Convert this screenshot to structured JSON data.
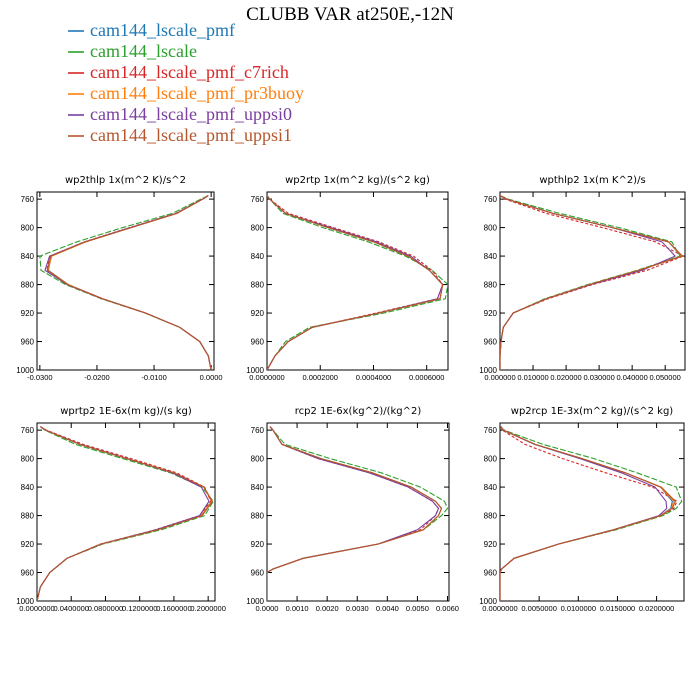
{
  "figure": {
    "title": "CLUBB VAR at250E,-12N",
    "legend": [
      {
        "label": "cam144_lscale_pmf",
        "color": "#1f77b4"
      },
      {
        "label": "cam144_lscale",
        "color": "#2ca02c"
      },
      {
        "label": "cam144_lscale_pmf_c7rich",
        "color": "#d62728"
      },
      {
        "label": "cam144_lscale_pmf_pr3buoy",
        "color": "#ff7f0e"
      },
      {
        "label": "cam144_lscale_pmf_uppsi0",
        "color": "#7b3fa0"
      },
      {
        "label": "cam144_lscale_pmf_uppsi1",
        "color": "#b5572e"
      }
    ]
  },
  "chart_data": [
    {
      "type": "line",
      "title": "wp2thlp  1x(m^2 K)/s^2",
      "xlim": [
        -0.0305,
        0.0005
      ],
      "xticks": [
        -0.03,
        -0.02,
        -0.01,
        0.0
      ],
      "xticklabels": [
        "-0.0300",
        "-0.0200",
        "-0.0100",
        "0.0000"
      ],
      "ylim": [
        1000,
        750
      ],
      "yticks": [
        760,
        800,
        840,
        880,
        920,
        960,
        1000
      ],
      "y": [
        755,
        760,
        780,
        800,
        820,
        840,
        860,
        880,
        900,
        920,
        940,
        960,
        980,
        1000
      ],
      "series": [
        {
          "name": "cam144_lscale_pmf",
          "x": [
            -0.0005,
            -0.0015,
            -0.006,
            -0.014,
            -0.022,
            -0.028,
            -0.0285,
            -0.025,
            -0.019,
            -0.0115,
            -0.0055,
            -0.002,
            -0.0005,
            0.0
          ]
        },
        {
          "name": "cam144_lscale",
          "x": [
            -0.0005,
            -0.0018,
            -0.0068,
            -0.0155,
            -0.0235,
            -0.03,
            -0.0298,
            -0.0255,
            -0.0192,
            -0.0116,
            -0.0055,
            -0.002,
            -0.0005,
            0.0
          ]
        },
        {
          "name": "cam144_lscale_pmf_c7rich",
          "x": [
            -0.0005,
            -0.0015,
            -0.0062,
            -0.0143,
            -0.0222,
            -0.0282,
            -0.0288,
            -0.0252,
            -0.0191,
            -0.0115,
            -0.0055,
            -0.002,
            -0.0005,
            0.0
          ]
        },
        {
          "name": "cam144_lscale_pmf_pr3buoy",
          "x": [
            -0.0005,
            -0.0015,
            -0.006,
            -0.014,
            -0.0219,
            -0.0279,
            -0.0286,
            -0.025,
            -0.019,
            -0.0115,
            -0.0055,
            -0.002,
            -0.0005,
            0.0
          ]
        },
        {
          "name": "cam144_lscale_pmf_uppsi0",
          "x": [
            -0.0005,
            -0.0015,
            -0.0061,
            -0.0142,
            -0.0221,
            -0.0283,
            -0.0291,
            -0.0252,
            -0.019,
            -0.0115,
            -0.0055,
            -0.002,
            -0.0005,
            0.0
          ]
        },
        {
          "name": "cam144_lscale_pmf_uppsi1",
          "x": [
            -0.0005,
            -0.0015,
            -0.006,
            -0.014,
            -0.022,
            -0.0281,
            -0.0287,
            -0.0251,
            -0.019,
            -0.0115,
            -0.0055,
            -0.002,
            -0.0005,
            0.0
          ]
        }
      ]
    },
    {
      "type": "line",
      "title": "wp2rtp  1x(m^2 kg)/(s^2 kg)",
      "xlim": [
        0,
        0.00068
      ],
      "xticks": [
        0,
        0.0002,
        0.0004,
        0.0006
      ],
      "xticklabels": [
        "0.0000000",
        "0.0002000",
        "0.0004000",
        "0.0006000"
      ],
      "ylim": [
        1000,
        750
      ],
      "yticks": [
        760,
        800,
        840,
        880,
        920,
        960,
        1000
      ],
      "y": [
        755,
        760,
        780,
        800,
        820,
        840,
        860,
        880,
        900,
        920,
        940,
        960,
        980,
        1000
      ],
      "series": [
        {
          "name": "cam144_lscale_pmf",
          "x": [
            0.0,
            1e-05,
            7e-05,
            0.00023,
            0.0004,
            0.00053,
            0.00061,
            0.00066,
            0.00065,
            0.00042,
            0.00017,
            8e-05,
            3e-05,
            0.0
          ]
        },
        {
          "name": "cam144_lscale",
          "x": [
            0.0,
            1e-05,
            6e-05,
            0.00021,
            0.00038,
            0.00052,
            0.00062,
            0.00068,
            0.00067,
            0.00044,
            0.00016,
            7e-05,
            3e-05,
            0.0
          ]
        },
        {
          "name": "cam144_lscale_pmf_c7rich",
          "x": [
            0.0,
            1e-05,
            8e-05,
            0.00025,
            0.00042,
            0.00055,
            0.00062,
            0.00066,
            0.00064,
            0.00041,
            0.00017,
            8e-05,
            3e-05,
            0.0
          ]
        },
        {
          "name": "cam144_lscale_pmf_pr3buoy",
          "x": [
            0.0,
            1e-05,
            7e-05,
            0.00023,
            0.0004,
            0.00053,
            0.00061,
            0.00066,
            0.00065,
            0.00042,
            0.00017,
            8e-05,
            3e-05,
            0.0
          ]
        },
        {
          "name": "cam144_lscale_pmf_uppsi0",
          "x": [
            0.0,
            1e-05,
            7e-05,
            0.00024,
            0.00041,
            0.00054,
            0.00061,
            0.00066,
            0.00064,
            0.00042,
            0.00017,
            8e-05,
            3e-05,
            0.0
          ]
        },
        {
          "name": "cam144_lscale_pmf_uppsi1",
          "x": [
            0.0,
            1e-05,
            7e-05,
            0.00023,
            0.0004,
            0.00053,
            0.00061,
            0.00066,
            0.00065,
            0.00042,
            0.00017,
            8e-05,
            3e-05,
            0.0
          ]
        }
      ]
    },
    {
      "type": "line",
      "title": "wpthlp2  1x(m K^2)/s",
      "xlim": [
        0,
        0.056
      ],
      "xticks": [
        0,
        0.01,
        0.02,
        0.03,
        0.04,
        0.05
      ],
      "xticklabels": [
        "0.000000",
        "0.010000",
        "0.020000",
        "0.030000",
        "0.040000",
        "0.050000"
      ],
      "ylim": [
        1000,
        750
      ],
      "yticks": [
        760,
        800,
        840,
        880,
        920,
        960,
        1000
      ],
      "y": [
        755,
        760,
        780,
        800,
        820,
        840,
        860,
        880,
        900,
        920,
        940,
        960,
        980,
        1000
      ],
      "series": [
        {
          "name": "cam144_lscale_pmf",
          "x": [
            0.0,
            0.002,
            0.016,
            0.034,
            0.051,
            0.0548,
            0.042,
            0.027,
            0.014,
            0.004,
            0.001,
            0.0003,
            0.0,
            0.0
          ]
        },
        {
          "name": "cam144_lscale",
          "x": [
            0.0,
            0.0025,
            0.018,
            0.036,
            0.052,
            0.0545,
            0.0415,
            0.0265,
            0.0135,
            0.004,
            0.001,
            0.0003,
            0.0,
            0.0
          ]
        },
        {
          "name": "cam144_lscale_pmf_c7rich",
          "x": [
            0.0,
            0.0015,
            0.014,
            0.031,
            0.047,
            0.0555,
            0.0445,
            0.028,
            0.0145,
            0.004,
            0.001,
            0.0003,
            0.0,
            0.0
          ]
        },
        {
          "name": "cam144_lscale_pmf_pr3buoy",
          "x": [
            0.0,
            0.002,
            0.016,
            0.034,
            0.051,
            0.055,
            0.042,
            0.027,
            0.014,
            0.004,
            0.001,
            0.0003,
            0.0,
            0.0
          ]
        },
        {
          "name": "cam144_lscale_pmf_uppsi0",
          "x": [
            0.0,
            0.002,
            0.016,
            0.034,
            0.049,
            0.053,
            0.043,
            0.0275,
            0.014,
            0.004,
            0.001,
            0.0003,
            0.0,
            0.0
          ]
        },
        {
          "name": "cam144_lscale_pmf_uppsi1",
          "x": [
            0.0,
            0.002,
            0.016,
            0.034,
            0.051,
            0.0552,
            0.042,
            0.027,
            0.014,
            0.004,
            0.001,
            0.0003,
            0.0,
            0.0
          ]
        }
      ]
    },
    {
      "type": "line",
      "title": "wprtp2  1E-6x(m kg)/(s kg)",
      "xlim": [
        0,
        0.208
      ],
      "xticks": [
        0,
        0.04,
        0.08,
        0.12,
        0.16,
        0.2
      ],
      "xticklabels": [
        "0.0000000",
        "0.0400000",
        "0.0800000",
        "0.1200000",
        "0.1600000",
        "0.2000000"
      ],
      "ylim": [
        1000,
        750
      ],
      "yticks": [
        760,
        800,
        840,
        880,
        920,
        960,
        1000
      ],
      "y": [
        755,
        760,
        780,
        800,
        820,
        840,
        860,
        880,
        900,
        920,
        940,
        960,
        980,
        1000
      ],
      "series": [
        {
          "name": "cam144_lscale_pmf",
          "x": [
            0.004,
            0.01,
            0.05,
            0.105,
            0.16,
            0.195,
            0.204,
            0.192,
            0.14,
            0.075,
            0.035,
            0.015,
            0.004,
            0.0
          ]
        },
        {
          "name": "cam144_lscale",
          "x": [
            0.004,
            0.009,
            0.045,
            0.1,
            0.156,
            0.193,
            0.206,
            0.196,
            0.145,
            0.077,
            0.035,
            0.015,
            0.004,
            0.0
          ]
        },
        {
          "name": "cam144_lscale_pmf_c7rich",
          "x": [
            0.004,
            0.011,
            0.054,
            0.11,
            0.163,
            0.196,
            0.203,
            0.19,
            0.138,
            0.074,
            0.035,
            0.015,
            0.004,
            0.0
          ]
        },
        {
          "name": "cam144_lscale_pmf_pr3buoy",
          "x": [
            0.004,
            0.01,
            0.05,
            0.105,
            0.16,
            0.195,
            0.204,
            0.192,
            0.14,
            0.075,
            0.035,
            0.015,
            0.004,
            0.0
          ]
        },
        {
          "name": "cam144_lscale_pmf_uppsi0",
          "x": [
            0.004,
            0.01,
            0.051,
            0.106,
            0.158,
            0.192,
            0.201,
            0.19,
            0.139,
            0.075,
            0.035,
            0.015,
            0.004,
            0.0
          ]
        },
        {
          "name": "cam144_lscale_pmf_uppsi1",
          "x": [
            0.004,
            0.01,
            0.05,
            0.105,
            0.16,
            0.195,
            0.205,
            0.193,
            0.141,
            0.075,
            0.035,
            0.015,
            0.004,
            0.0
          ]
        }
      ]
    },
    {
      "type": "line",
      "title": "rcp2  1E-6x(kg^2)/(kg^2)",
      "xlim": [
        0,
        0.00605
      ],
      "xticks": [
        0,
        0.001,
        0.002,
        0.003,
        0.004,
        0.005,
        0.006
      ],
      "xticklabels": [
        "0.0000",
        "0.0010",
        "0.0020",
        "0.0030",
        "0.0040",
        "0.0050",
        "0.0060"
      ],
      "ylim": [
        1000,
        750
      ],
      "yticks": [
        760,
        800,
        840,
        880,
        920,
        960,
        1000
      ],
      "y": [
        755,
        760,
        780,
        800,
        820,
        840,
        860,
        870,
        880,
        900,
        920,
        940,
        955,
        960,
        980,
        1000
      ],
      "series": [
        {
          "name": "cam144_lscale_pmf",
          "x": [
            0.0001,
            0.0002,
            0.0005,
            0.0018,
            0.0035,
            0.0048,
            0.0056,
            0.0058,
            0.0057,
            0.0052,
            0.0037,
            0.0012,
            0.0002,
            0.0,
            0.0,
            0.0
          ]
        },
        {
          "name": "cam144_lscale",
          "x": [
            0.0001,
            0.0002,
            0.0006,
            0.0021,
            0.0038,
            0.0051,
            0.0059,
            0.006,
            0.0058,
            0.0052,
            0.0037,
            0.0012,
            0.0002,
            0.0,
            0.0,
            0.0
          ]
        },
        {
          "name": "cam144_lscale_pmf_c7rich",
          "x": [
            0.0001,
            0.0002,
            0.0005,
            0.0017,
            0.0034,
            0.0047,
            0.0055,
            0.0057,
            0.0056,
            0.0051,
            0.0037,
            0.0012,
            0.0002,
            0.0,
            0.0,
            0.0
          ]
        },
        {
          "name": "cam144_lscale_pmf_pr3buoy",
          "x": [
            0.0001,
            0.0002,
            0.0005,
            0.0018,
            0.0035,
            0.0048,
            0.0056,
            0.0058,
            0.0057,
            0.0052,
            0.0037,
            0.0012,
            0.0002,
            0.0,
            0.0,
            0.0
          ]
        },
        {
          "name": "cam144_lscale_pmf_uppsi0",
          "x": [
            0.0001,
            0.0002,
            0.0005,
            0.0017,
            0.0034,
            0.0047,
            0.0055,
            0.0057,
            0.0056,
            0.005,
            0.0037,
            0.0012,
            0.0002,
            0.0,
            0.0,
            0.0
          ]
        },
        {
          "name": "cam144_lscale_pmf_uppsi1",
          "x": [
            0.0001,
            0.0002,
            0.0005,
            0.0018,
            0.0035,
            0.0048,
            0.0056,
            0.0058,
            0.0057,
            0.0052,
            0.0037,
            0.0012,
            0.0002,
            0.0,
            0.0,
            0.0
          ]
        }
      ]
    },
    {
      "type": "line",
      "title": "wp2rcp  1E-3x(m^2 kg)/(s^2 kg)",
      "xlim": [
        0,
        0.0235
      ],
      "xticks": [
        0,
        0.005,
        0.01,
        0.015,
        0.02
      ],
      "xticklabels": [
        "0.0000000",
        "0.0050000",
        "0.0100000",
        "0.0150000",
        "0.0200000"
      ],
      "ylim": [
        1000,
        750
      ],
      "yticks": [
        760,
        800,
        840,
        880,
        920,
        960,
        1000
      ],
      "y": [
        755,
        760,
        780,
        800,
        820,
        840,
        860,
        870,
        880,
        900,
        920,
        940,
        955,
        960,
        980,
        1000
      ],
      "series": [
        {
          "name": "cam144_lscale_pmf",
          "x": [
            0.0001,
            0.0004,
            0.0045,
            0.0105,
            0.016,
            0.0205,
            0.022,
            0.0218,
            0.0205,
            0.0145,
            0.0075,
            0.0018,
            0.0002,
            0.0,
            0.0,
            0.0
          ]
        },
        {
          "name": "cam144_lscale",
          "x": [
            0.0001,
            0.0005,
            0.0055,
            0.012,
            0.0175,
            0.0225,
            0.0232,
            0.0225,
            0.0208,
            0.0148,
            0.0075,
            0.0018,
            0.0002,
            0.0,
            0.0,
            0.0
          ]
        },
        {
          "name": "cam144_lscale_pmf_c7rich",
          "x": [
            0.0001,
            0.0003,
            0.0032,
            0.008,
            0.0135,
            0.0195,
            0.0226,
            0.0222,
            0.0206,
            0.0145,
            0.0075,
            0.0018,
            0.0002,
            0.0,
            0.0,
            0.0
          ]
        },
        {
          "name": "cam144_lscale_pmf_pr3buoy",
          "x": [
            0.0001,
            0.0004,
            0.0045,
            0.0105,
            0.016,
            0.0205,
            0.0222,
            0.0219,
            0.0205,
            0.0145,
            0.0075,
            0.0018,
            0.0002,
            0.0,
            0.0,
            0.0
          ]
        },
        {
          "name": "cam144_lscale_pmf_uppsi0",
          "x": [
            0.0001,
            0.0004,
            0.0044,
            0.0102,
            0.0155,
            0.0198,
            0.0212,
            0.0213,
            0.0203,
            0.0145,
            0.0075,
            0.0018,
            0.0002,
            0.0,
            0.0,
            0.0
          ]
        },
        {
          "name": "cam144_lscale_pmf_uppsi1",
          "x": [
            0.0001,
            0.0004,
            0.0045,
            0.0105,
            0.016,
            0.0206,
            0.0224,
            0.022,
            0.0205,
            0.0145,
            0.0075,
            0.0018,
            0.0002,
            0.0,
            0.0,
            0.0
          ]
        }
      ]
    }
  ]
}
